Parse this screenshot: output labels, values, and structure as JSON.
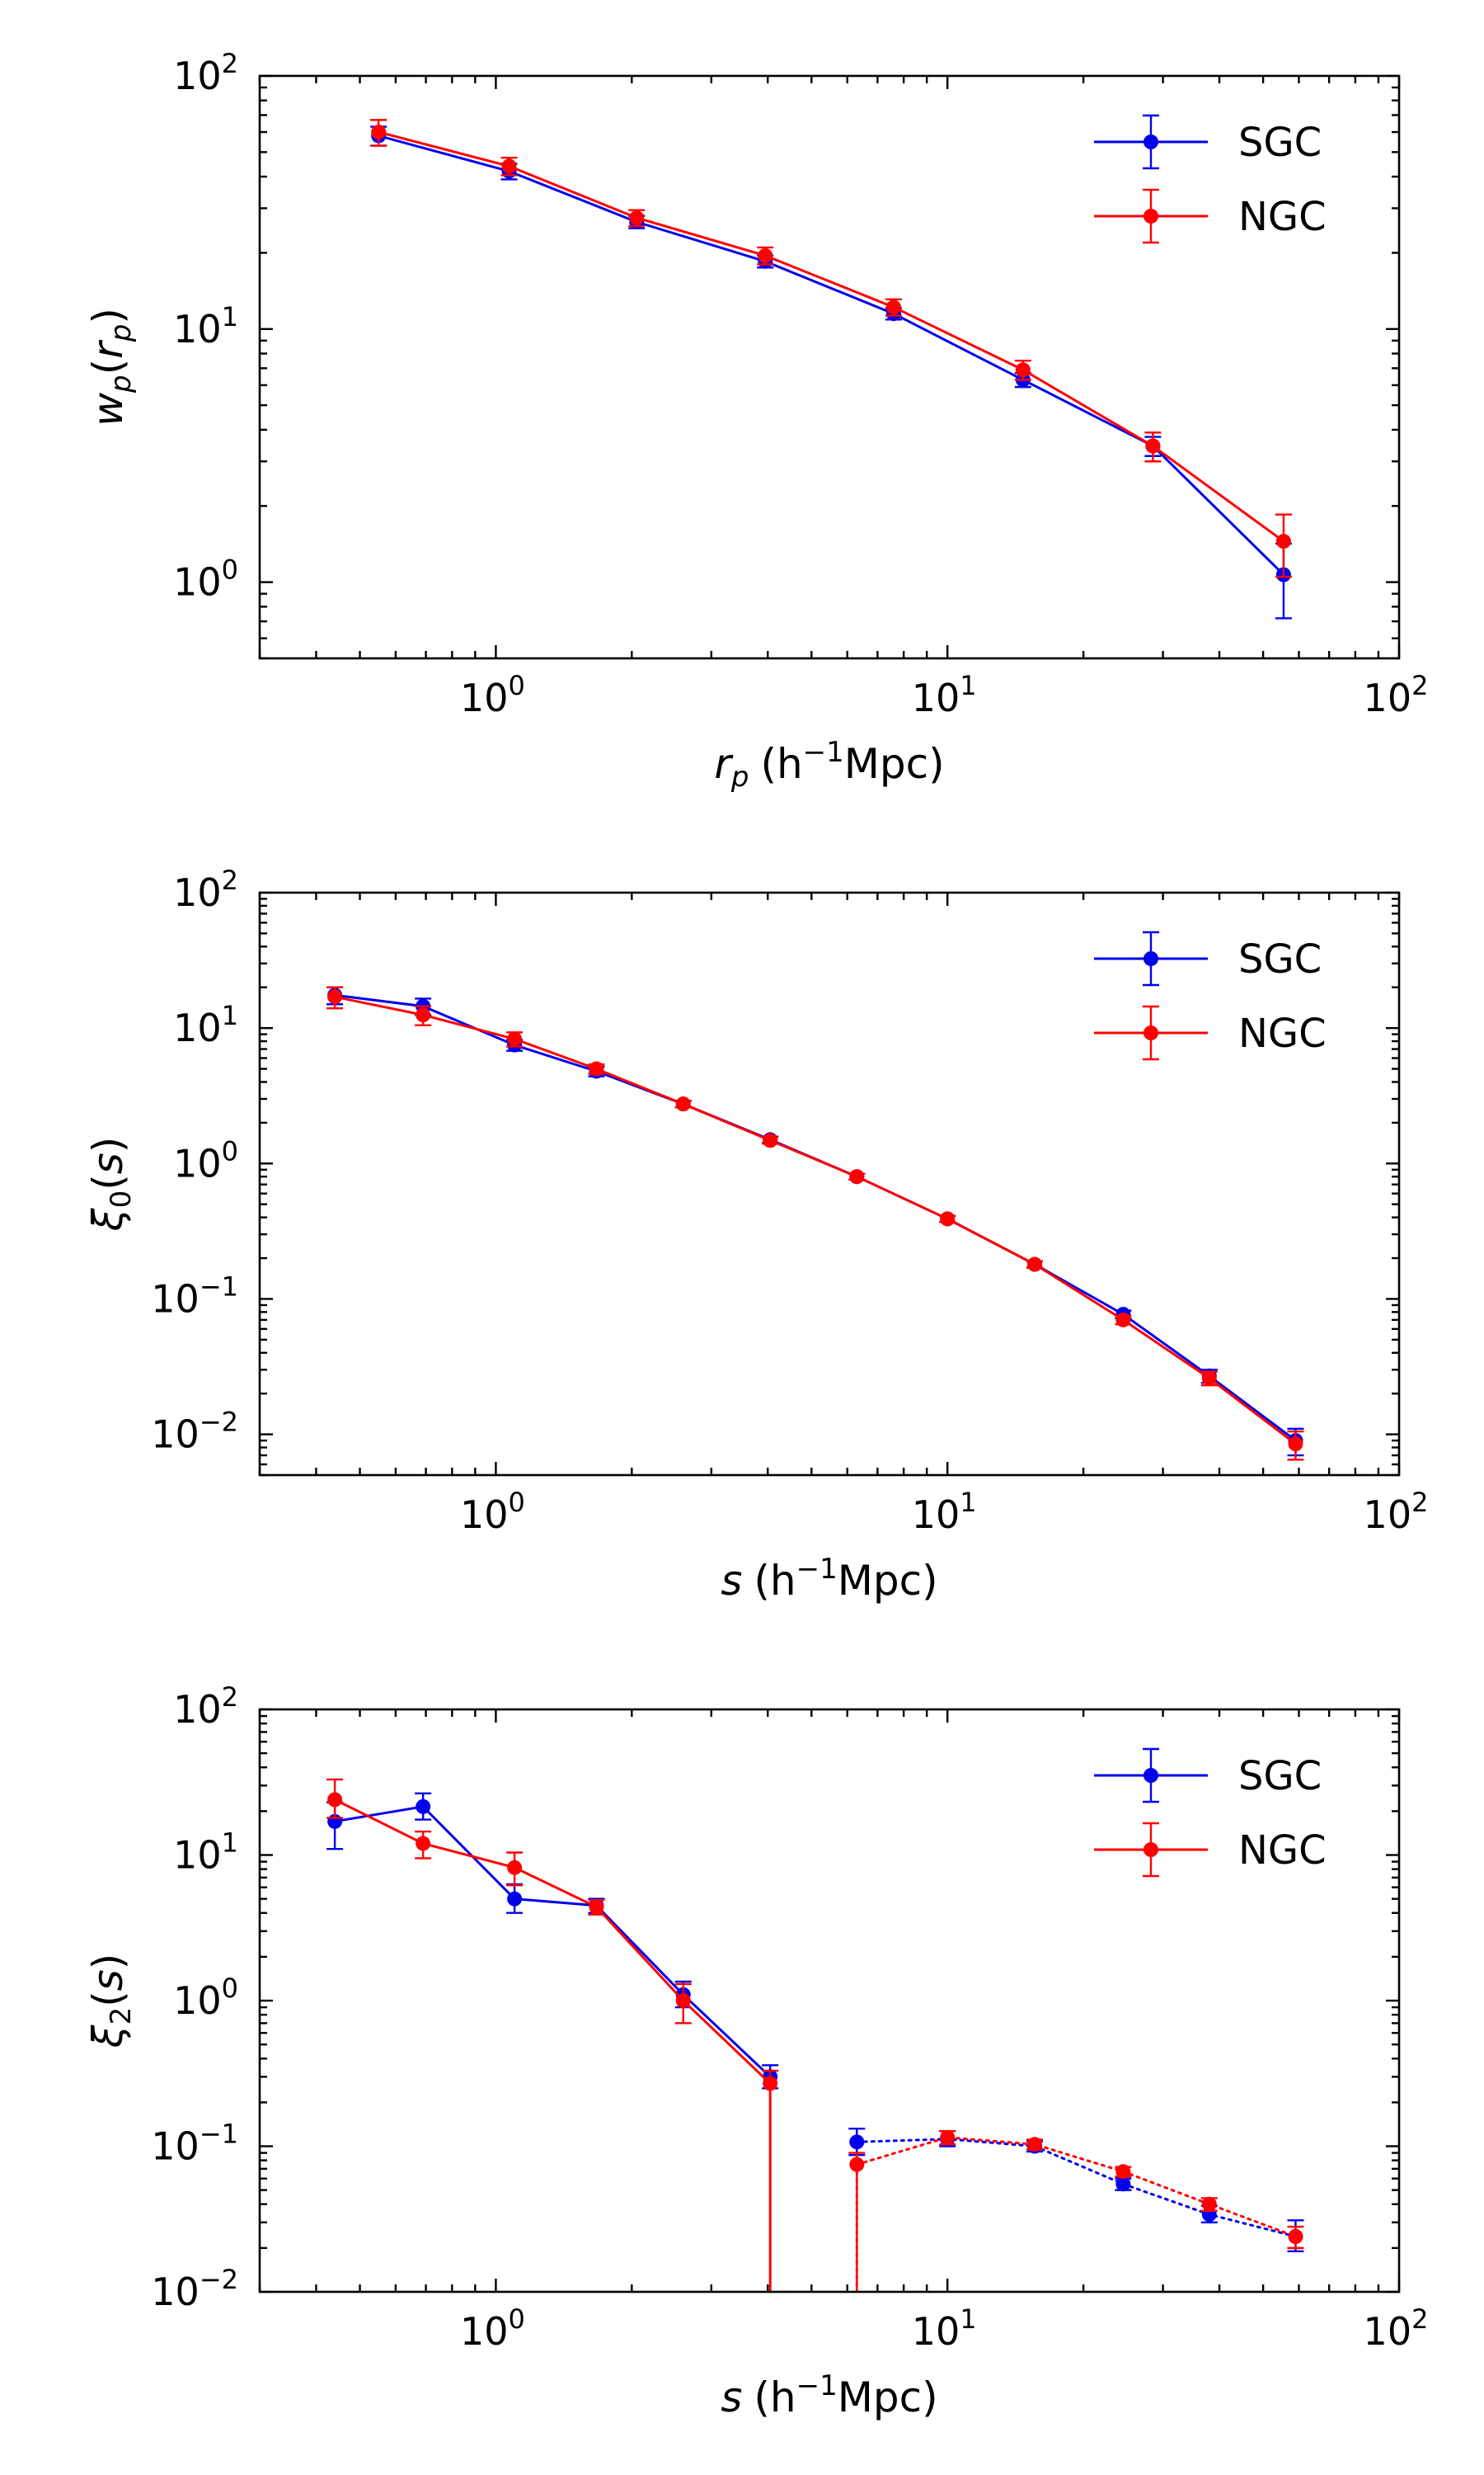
{
  "colors": {
    "SGC": "#0000ee",
    "NGC": "#ff0000"
  },
  "chart_data": [
    {
      "type": "line",
      "name": "wp",
      "xscale": "log",
      "yscale": "log",
      "xlim": [
        0.3,
        100
      ],
      "ylim": [
        0.5,
        100
      ],
      "x_ticks": [
        {
          "base": "10",
          "exp": "0",
          "value": 1
        },
        {
          "base": "10",
          "exp": "1",
          "value": 10
        },
        {
          "base": "10",
          "exp": "2",
          "value": 100
        }
      ],
      "y_ticks": [
        {
          "base": "10",
          "exp": "0",
          "value": 1
        },
        {
          "base": "10",
          "exp": "1",
          "value": 10
        },
        {
          "base": "10",
          "exp": "2",
          "value": 100
        }
      ],
      "ylabel": {
        "main": "w",
        "sub": "p",
        "paren_open": "(",
        "arg": "r",
        "arg_sub": "p",
        "paren_close": ")"
      },
      "xlabel": {
        "var": "r",
        "var_sub": "p",
        "unit_pre": "(h",
        "unit_exp": "−1",
        "unit_post": "Mpc)"
      },
      "legend": {
        "position": "top-right",
        "entries": [
          "SGC",
          "NGC"
        ]
      },
      "series": [
        {
          "name": "SGC",
          "x": [
            0.55,
            1.07,
            2.05,
            3.95,
            7.6,
            14.7,
            28.5,
            55.5
          ],
          "y": [
            58,
            42,
            26.5,
            18.5,
            11.5,
            6.3,
            3.45,
            1.07
          ],
          "err": [
            5,
            3,
            1.5,
            1,
            0.6,
            0.4,
            0.3,
            0.35
          ],
          "style": "solid"
        },
        {
          "name": "NGC",
          "x": [
            0.55,
            1.07,
            2.05,
            3.95,
            7.6,
            14.7,
            28.5,
            55.5
          ],
          "y": [
            60,
            44,
            27.5,
            19.5,
            12.2,
            6.9,
            3.45,
            1.45
          ],
          "err": [
            7,
            3.5,
            2,
            1.5,
            0.9,
            0.6,
            0.45,
            0.4
          ],
          "style": "solid"
        }
      ]
    },
    {
      "type": "line",
      "name": "xi0",
      "xscale": "log",
      "yscale": "log",
      "xlim": [
        0.3,
        100
      ],
      "ylim": [
        0.005,
        100
      ],
      "x_ticks": [
        {
          "base": "10",
          "exp": "0",
          "value": 1
        },
        {
          "base": "10",
          "exp": "1",
          "value": 10
        },
        {
          "base": "10",
          "exp": "2",
          "value": 100
        }
      ],
      "y_ticks": [
        {
          "base": "10",
          "exp": "−2",
          "value": 0.01
        },
        {
          "base": "10",
          "exp": "−1",
          "value": 0.1
        },
        {
          "base": "10",
          "exp": "0",
          "value": 1
        },
        {
          "base": "10",
          "exp": "1",
          "value": 10
        },
        {
          "base": "10",
          "exp": "2",
          "value": 100
        }
      ],
      "ylabel": {
        "main": "ξ",
        "sub": "0",
        "paren_open": "(",
        "arg": "s",
        "arg_sub": "",
        "paren_close": ")"
      },
      "xlabel": {
        "var": "s",
        "var_sub": "",
        "unit_pre": "(h",
        "unit_exp": "−1",
        "unit_post": "Mpc)"
      },
      "legend": {
        "position": "top-right",
        "entries": [
          "SGC",
          "NGC"
        ]
      },
      "series": [
        {
          "name": "SGC",
          "x": [
            0.44,
            0.69,
            1.1,
            1.67,
            2.6,
            4.05,
            6.3,
            10,
            15.6,
            24.5,
            38,
            59
          ],
          "y": [
            17.5,
            14.5,
            7.5,
            4.8,
            2.75,
            1.5,
            0.8,
            0.39,
            0.18,
            0.077,
            0.027,
            0.009
          ],
          "err": [
            2.5,
            2,
            0.7,
            0.4,
            0.15,
            0.08,
            0.04,
            0.02,
            0.01,
            0.005,
            0.003,
            0.002
          ],
          "style": "solid"
        },
        {
          "name": "NGC",
          "x": [
            0.44,
            0.69,
            1.1,
            1.67,
            2.6,
            4.05,
            6.3,
            10,
            15.6,
            24.5,
            38,
            59
          ],
          "y": [
            17,
            12.5,
            8.3,
            5,
            2.75,
            1.48,
            0.8,
            0.39,
            0.18,
            0.07,
            0.026,
            0.0085
          ],
          "err": [
            3,
            2,
            1,
            0.4,
            0.15,
            0.08,
            0.04,
            0.02,
            0.01,
            0.005,
            0.003,
            0.002
          ],
          "style": "solid"
        }
      ]
    },
    {
      "type": "line",
      "name": "xi2",
      "xscale": "log",
      "yscale": "log",
      "xlim": [
        0.3,
        100
      ],
      "ylim": [
        0.01,
        100
      ],
      "x_ticks": [
        {
          "base": "10",
          "exp": "0",
          "value": 1
        },
        {
          "base": "10",
          "exp": "1",
          "value": 10
        },
        {
          "base": "10",
          "exp": "2",
          "value": 100
        }
      ],
      "y_ticks": [
        {
          "base": "10",
          "exp": "−2",
          "value": 0.01
        },
        {
          "base": "10",
          "exp": "−1",
          "value": 0.1
        },
        {
          "base": "10",
          "exp": "0",
          "value": 1
        },
        {
          "base": "10",
          "exp": "1",
          "value": 10
        },
        {
          "base": "10",
          "exp": "2",
          "value": 100
        }
      ],
      "ylabel": {
        "main": "ξ",
        "sub": "2",
        "paren_open": "(",
        "arg": "s",
        "arg_sub": "",
        "paren_close": ")"
      },
      "xlabel": {
        "var": "s",
        "var_sub": "",
        "unit_pre": "(h",
        "unit_exp": "−1",
        "unit_post": "Mpc)"
      },
      "legend": {
        "position": "top-right",
        "entries": [
          "SGC",
          "NGC"
        ]
      },
      "series": [
        {
          "name": "SGC",
          "style": "solid",
          "x": [
            0.44,
            0.69,
            1.1,
            1.67,
            2.6,
            4.05
          ],
          "y": [
            17,
            21.5,
            5,
            4.5,
            1.1,
            0.3
          ],
          "err_low": [
            6,
            4,
            1,
            0.5,
            0.2,
            0.05
          ],
          "err_high": [
            6,
            5,
            1.3,
            0.5,
            0.25,
            0.06
          ]
        },
        {
          "name": "SGC",
          "style": "dotted",
          "x": [
            6.3,
            10,
            15.6,
            24.5,
            38,
            59
          ],
          "y": [
            0.107,
            0.112,
            0.1,
            0.055,
            0.034,
            0.024
          ],
          "err_low": [
            0.02,
            0.012,
            0.008,
            0.005,
            0.004,
            0.005
          ],
          "err_high": [
            0.025,
            0.015,
            0.008,
            0.005,
            0.005,
            0.007
          ]
        },
        {
          "name": "NGC",
          "style": "solid",
          "x": [
            0.44,
            0.69,
            1.1,
            1.67,
            2.6,
            4.05
          ],
          "y": [
            24,
            12,
            8.2,
            4.4,
            1.0,
            0.27
          ],
          "err_low": [
            6,
            2.5,
            2,
            0.5,
            0.3,
            0.27
          ],
          "err_high": [
            9,
            2.5,
            2.2,
            0.5,
            0.3,
            0.06
          ]
        },
        {
          "name": "NGC",
          "style": "dotted",
          "x": [
            6.3,
            10,
            15.6,
            24.5,
            38,
            59
          ],
          "y": [
            0.075,
            0.115,
            0.103,
            0.067,
            0.04,
            0.024
          ],
          "err_low": [
            0.075,
            0.012,
            0.008,
            0.005,
            0.004,
            0.004
          ],
          "err_high": [
            0.015,
            0.012,
            0.008,
            0.005,
            0.004,
            0.004
          ]
        },
        {
          "name": "NGC",
          "style": "solid-drop",
          "x": [
            4.05,
            4.05
          ],
          "y": [
            0.27,
            0.01
          ]
        },
        {
          "name": "NGC",
          "style": "dotted-drop",
          "x": [
            6.3,
            6.3
          ],
          "y": [
            0.075,
            0.01
          ]
        }
      ]
    }
  ]
}
